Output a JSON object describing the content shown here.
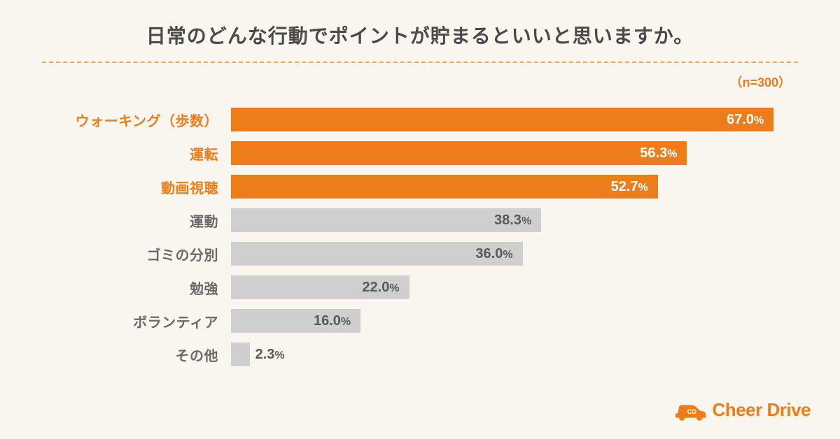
{
  "title": "日常のどんな行動でポイントが貯まるといいと思いますか。",
  "sample_size_label": "（n=300）",
  "chart": {
    "type": "bar",
    "max_value": 70.0,
    "colors": {
      "highlight_bar": "#ed7d1a",
      "normal_bar": "#cfcfcf",
      "highlight_text": "#ed7d1a",
      "normal_text": "#6a6a6a",
      "value_text_light": "#ffffff",
      "value_text_dark": "#5a5a5a",
      "background": "#f9f6f0",
      "divider": "#e8a85c"
    },
    "bars": [
      {
        "label": "ウォーキング（歩数）",
        "value": "67.0",
        "highlight": true,
        "value_inside": true
      },
      {
        "label": "運転",
        "value": "56.3",
        "highlight": true,
        "value_inside": true
      },
      {
        "label": "動画視聴",
        "value": "52.7",
        "highlight": true,
        "value_inside": true
      },
      {
        "label": "運動",
        "value": "38.3",
        "highlight": false,
        "value_inside": true
      },
      {
        "label": "ゴミの分別",
        "value": "36.0",
        "highlight": false,
        "value_inside": true
      },
      {
        "label": "勉強",
        "value": "22.0",
        "highlight": false,
        "value_inside": true
      },
      {
        "label": "ボランティア",
        "value": "16.0",
        "highlight": false,
        "value_inside": true
      },
      {
        "label": "その他",
        "value": "2.3",
        "highlight": false,
        "value_inside": false
      }
    ]
  },
  "logo": {
    "text": "Cheer Drive",
    "badge_text": "CD",
    "color": "#ed7d1a"
  }
}
